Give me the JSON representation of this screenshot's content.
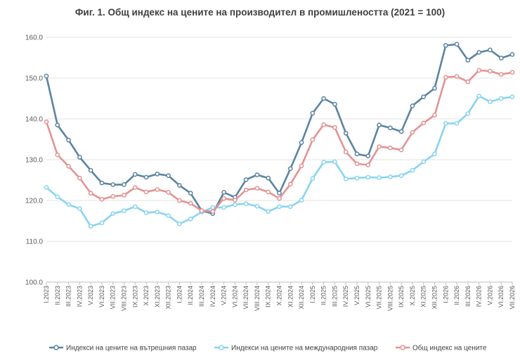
{
  "chart_data": {
    "type": "line",
    "title": "Фиг. 1. Общ индекс на цените на производител в промишлеността (2021 = 100)",
    "xlabel": "",
    "ylabel": "",
    "ylim": [
      100,
      160
    ],
    "yticks": [
      "100.0",
      "110.0",
      "120.0",
      "130.0",
      "140.0",
      "150.0",
      "160.0"
    ],
    "grid": true,
    "legend_position": "bottom",
    "categories": [
      "I.2023",
      "II.2023",
      "III.2023",
      "IV.2023",
      "V.2023",
      "VI.2023",
      "VII.2023",
      "VIII.2023",
      "IX.2023",
      "X.2023",
      "XI.2023",
      "XII.2023",
      "I.2024",
      "II.2024",
      "III.2024",
      "IV.2024",
      "V.2024",
      "VI.2024",
      "VII.2024",
      "VIII.2024",
      "IX.2024",
      "X.2024",
      "XI.2024",
      "XII.2024",
      "I.2025",
      "II.2025",
      "III.2025",
      "IV.2025",
      "V.2025",
      "VI.2025",
      "VII.2025",
      "VIII.2025",
      "IX.2025",
      "X.2025",
      "XI.2025",
      "XII.2025",
      "I.2026",
      "II.2026",
      "III.2026",
      "IV.2026",
      "V.2026",
      "VI.2026",
      "VII.2026"
    ],
    "series": [
      {
        "name": "Индекси на цените на вътрешния пазар",
        "color": "#5b84a0",
        "values": [
          150.5,
          138.5,
          134.8,
          130.6,
          127.4,
          124.3,
          123.9,
          123.9,
          126.4,
          125.7,
          126.5,
          126.1,
          123.7,
          121.8,
          117.5,
          116.8,
          122.0,
          120.8,
          125.1,
          126.3,
          125.5,
          121.8,
          127.8,
          134.2,
          141.4,
          145.0,
          143.6,
          136.5,
          131.4,
          130.9,
          138.5,
          137.8,
          136.9,
          143.2,
          145.4,
          147.5,
          158.0,
          158.3,
          154.4,
          156.3,
          156.9,
          154.9,
          155.8
        ]
      },
      {
        "name": "Индекси на цените на международния пазар",
        "color": "#88d4f0",
        "values": [
          123.2,
          120.9,
          119.0,
          118.0,
          113.7,
          114.5,
          116.8,
          117.5,
          118.5,
          117.0,
          117.2,
          116.3,
          114.3,
          115.5,
          117.2,
          118.3,
          118.3,
          119.0,
          119.2,
          118.6,
          117.3,
          118.5,
          118.5,
          120.1,
          125.4,
          129.4,
          129.5,
          125.3,
          125.5,
          125.7,
          125.6,
          125.8,
          126.1,
          127.4,
          129.5,
          131.4,
          138.9,
          138.9,
          141.3,
          145.6,
          144.2,
          145.0,
          145.4
        ]
      },
      {
        "name": "Общ индекс на цените",
        "color": "#e39393",
        "values": [
          139.3,
          131.2,
          128.4,
          125.5,
          121.8,
          120.3,
          121.0,
          121.3,
          123.2,
          122.1,
          122.7,
          122.0,
          120.0,
          119.3,
          117.5,
          117.3,
          120.5,
          120.1,
          122.6,
          123.0,
          122.1,
          120.5,
          124.0,
          128.5,
          134.9,
          138.6,
          137.9,
          131.9,
          129.0,
          128.7,
          133.2,
          132.9,
          132.4,
          136.7,
          139.0,
          140.9,
          150.2,
          150.4,
          149.1,
          151.9,
          151.7,
          150.9,
          151.4
        ]
      }
    ]
  }
}
